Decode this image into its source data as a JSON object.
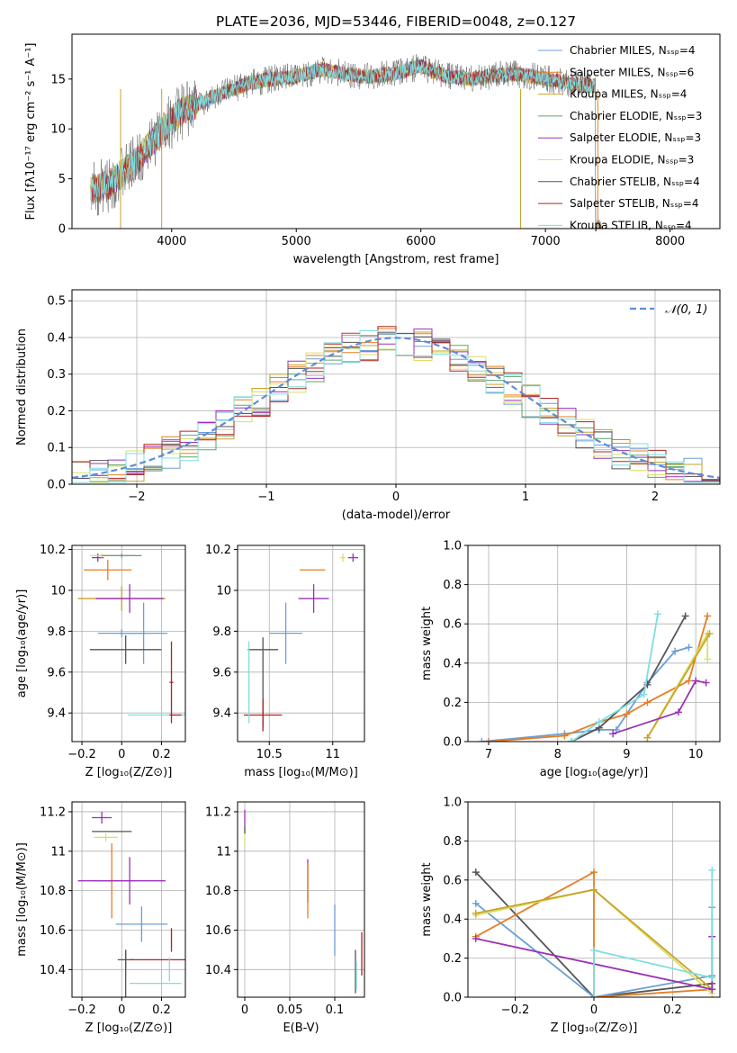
{
  "colors": [
    "#6b9fd6",
    "#e67e22",
    "#c9a227",
    "#5aa867",
    "#9b30b8",
    "#d8e066",
    "#555555",
    "#b22222",
    "#7fdde0"
  ],
  "chart_data": [
    {
      "id": "spectrum",
      "type": "line",
      "title": "PLATE=2036, MJD=53446, FIBERID=0048, z=0.127",
      "xlabel": "wavelength [Angstrom, rest frame]",
      "ylabel": "Flux [fλ10⁻¹⁷ erg cm⁻² s⁻¹ A⁻¹]",
      "xlim": [
        3200,
        8400
      ],
      "ylim": [
        0,
        19.5
      ],
      "xticks": [
        4000,
        5000,
        6000,
        7000,
        8000
      ],
      "yticks": [
        0,
        5,
        10,
        15
      ],
      "x": [
        3350,
        3500,
        3700,
        3900,
        4050,
        4200,
        4400,
        4600,
        4800,
        5000,
        5200,
        5400,
        5600,
        5800,
        6000,
        6200,
        6400,
        6600,
        6800,
        7000,
        7200,
        7400
      ],
      "y": [
        3.8,
        4.5,
        6.5,
        9.5,
        11.5,
        12.5,
        13.5,
        14.5,
        15.0,
        15.2,
        16.0,
        15.5,
        15.2,
        15.6,
        16.3,
        15.3,
        15.0,
        15.4,
        15.5,
        15.0,
        14.6,
        14.3
      ],
      "legend_location": "upper right",
      "legend": [
        "Chabrier MILES, Nₛₛₚ=4",
        "Salpeter MILES, Nₛₛₚ=6",
        "Kroupa MILES, Nₛₛₚ=4",
        "Chabrier ELODIE, Nₛₛₚ=3",
        "Salpeter ELODIE, Nₛₛₚ=3",
        "Kroupa ELODIE, Nₛₛₚ=3",
        "Chabrier STELIB, Nₛₛₚ=4",
        "Salpeter STELIB, Nₛₛₚ=4",
        "Kroupa STELIB, Nₛₛₚ=4"
      ]
    },
    {
      "id": "residuals",
      "type": "line",
      "xlabel": "(data-model)/error",
      "ylabel": "Normed distribution",
      "xlim": [
        -2.5,
        2.5
      ],
      "ylim": [
        0,
        0.53
      ],
      "xticks": [
        -2,
        -1,
        0,
        1,
        2
      ],
      "yticks": [
        0.0,
        0.1,
        0.2,
        0.3,
        0.4,
        0.5
      ],
      "grid": true,
      "legend_location": "upper right",
      "gaussian_label": "𝒩(0, 1)",
      "gaussian": {
        "mu": 0,
        "sigma": 1
      }
    },
    {
      "id": "age-vs-Z",
      "type": "scatter",
      "xlabel": "Z [log₁₀(Z/Z⊙)]",
      "ylabel": "age  [log₁₀(age/yr)]",
      "xlim": [
        -0.25,
        0.32
      ],
      "ylim": [
        9.26,
        10.22
      ],
      "xticks": [
        -0.2,
        0.0,
        0.2
      ],
      "yticks": [
        9.4,
        9.6,
        9.8,
        10.0,
        10.2
      ],
      "grid": true,
      "points": [
        {
          "x": -0.03,
          "y": 10.17,
          "xerr": 0.1,
          "yerr": 0.0,
          "c": 0
        },
        {
          "x": -0.07,
          "y": 10.1,
          "xerr": 0.12,
          "yerr": 0.05,
          "c": 1
        },
        {
          "x": -0.12,
          "y": 10.16,
          "xerr": 0.03,
          "yerr": 0.02,
          "c": 4
        },
        {
          "x": -0.1,
          "y": 10.17,
          "xerr": 0.06,
          "yerr": 0.01,
          "c": 5
        },
        {
          "x": 0.0,
          "y": 10.17,
          "xerr": 0.1,
          "yerr": 0.01,
          "c": 3
        },
        {
          "x": 0.0,
          "y": 9.96,
          "xerr": 0.22,
          "yerr": 0.06,
          "c": 2
        },
        {
          "x": 0.04,
          "y": 9.96,
          "xerr": 0.17,
          "yerr": 0.07,
          "c": 4
        },
        {
          "x": 0.0,
          "y": 9.79,
          "xerr": 0.12,
          "yerr": 0.02,
          "c": 0
        },
        {
          "x": 0.11,
          "y": 9.79,
          "xerr": 0.12,
          "yerr": 0.15,
          "c": 0
        },
        {
          "x": 0.02,
          "y": 9.71,
          "xerr": 0.18,
          "yerr": 0.07,
          "c": 6
        },
        {
          "x": 0.21,
          "y": 9.39,
          "xerr": 0.18,
          "yerr": 0.0,
          "c": 8
        },
        {
          "x": 0.25,
          "y": 9.55,
          "xerr": 0.01,
          "yerr": 0.2,
          "c": 7
        },
        {
          "x": 0.27,
          "y": 9.39,
          "xerr": 0.03,
          "yerr": 0.0,
          "c": 7
        }
      ]
    },
    {
      "id": "age-vs-mass",
      "type": "scatter",
      "xlabel": "mass [log₁₀(M/M⊙)]",
      "ylabel": "",
      "xlim": [
        10.25,
        11.25
      ],
      "ylim": [
        9.26,
        10.22
      ],
      "xticks": [
        10.5,
        11.0
      ],
      "yticks": [
        9.4,
        9.6,
        9.8,
        10.0,
        10.2
      ],
      "grid": true,
      "points": [
        {
          "x": 11.16,
          "y": 10.16,
          "xerr": 0.04,
          "yerr": 0.02,
          "c": 4
        },
        {
          "x": 11.08,
          "y": 10.16,
          "xerr": 0.02,
          "yerr": 0.02,
          "c": 5
        },
        {
          "x": 10.84,
          "y": 10.1,
          "xerr": 0.1,
          "yerr": 0.0,
          "c": 1
        },
        {
          "x": 10.85,
          "y": 9.96,
          "xerr": 0.12,
          "yerr": 0.07,
          "c": 4
        },
        {
          "x": 10.63,
          "y": 9.79,
          "xerr": 0.13,
          "yerr": 0.15,
          "c": 0
        },
        {
          "x": 10.45,
          "y": 9.71,
          "xerr": 0.12,
          "yerr": 0.0,
          "c": 6
        },
        {
          "x": 10.45,
          "y": 9.55,
          "xerr": 0.0,
          "yerr": 0.22,
          "c": 6
        },
        {
          "x": 10.45,
          "y": 9.39,
          "xerr": 0.15,
          "yerr": 0.08,
          "c": 7
        },
        {
          "x": 10.34,
          "y": 9.55,
          "xerr": 0.0,
          "yerr": 0.2,
          "c": 8
        }
      ]
    },
    {
      "id": "massweight-vs-age",
      "type": "line",
      "xlabel": "age  [log₁₀(age/yr)]",
      "ylabel": "mass weight",
      "xlim": [
        6.7,
        10.35
      ],
      "ylim": [
        0.0,
        1.0
      ],
      "xticks": [
        7,
        8,
        9,
        10
      ],
      "yticks": [
        0.0,
        0.2,
        0.4,
        0.6,
        0.8,
        1.0
      ],
      "grid": true,
      "series": [
        {
          "c": 0,
          "x": [
            6.9,
            8.1,
            8.6,
            8.85,
            9.3,
            9.7,
            9.9
          ],
          "y": [
            0.0,
            0.04,
            0.06,
            0.06,
            0.3,
            0.46,
            0.48
          ]
        },
        {
          "c": 1,
          "x": [
            7.0,
            8.1,
            8.6,
            9.0,
            9.3,
            9.9,
            10.17
          ],
          "y": [
            0.0,
            0.03,
            0.1,
            0.14,
            0.2,
            0.31,
            0.64
          ]
        },
        {
          "c": 6,
          "x": [
            8.2,
            8.6,
            9.3,
            9.85
          ],
          "y": [
            0.0,
            0.07,
            0.29,
            0.64
          ]
        },
        {
          "c": 8,
          "x": [
            8.2,
            8.6,
            9.25,
            9.45
          ],
          "y": [
            0.0,
            0.1,
            0.24,
            0.65
          ]
        },
        {
          "c": 5,
          "x": [
            9.3,
            10.17,
            10.17
          ],
          "y": [
            0.02,
            0.55,
            0.42
          ]
        },
        {
          "c": 2,
          "x": [
            9.3,
            10.2
          ],
          "y": [
            0.02,
            0.55
          ]
        },
        {
          "c": 4,
          "x": [
            8.8,
            9.75,
            10.0,
            10.15
          ],
          "y": [
            0.04,
            0.15,
            0.31,
            0.3
          ]
        }
      ]
    },
    {
      "id": "mass-vs-Z",
      "type": "scatter",
      "xlabel": "Z [log₁₀(Z/Z⊙)]",
      "ylabel": "mass [log₁₀(M/M⊙)]",
      "xlim": [
        -0.25,
        0.32
      ],
      "ylim": [
        10.26,
        11.25
      ],
      "xticks": [
        -0.2,
        0.0,
        0.2
      ],
      "yticks": [
        10.4,
        10.6,
        10.8,
        11.0,
        11.2
      ],
      "grid": true,
      "points": [
        {
          "x": -0.1,
          "y": 11.17,
          "xerr": 0.05,
          "yerr": 0.03,
          "c": 4
        },
        {
          "x": -0.05,
          "y": 11.1,
          "xerr": 0.1,
          "yerr": 0.0,
          "c": 6
        },
        {
          "x": -0.08,
          "y": 11.07,
          "xerr": 0.06,
          "yerr": 0.02,
          "c": 5
        },
        {
          "x": -0.05,
          "y": 10.85,
          "xerr": 0.1,
          "yerr": 0.19,
          "c": 1
        },
        {
          "x": 0.0,
          "y": 10.85,
          "xerr": 0.22,
          "yerr": 0.0,
          "c": 4
        },
        {
          "x": 0.04,
          "y": 10.85,
          "xerr": 0.0,
          "yerr": 0.12,
          "c": 4
        },
        {
          "x": 0.1,
          "y": 10.63,
          "xerr": 0.13,
          "yerr": 0.09,
          "c": 0
        },
        {
          "x": 0.02,
          "y": 10.45,
          "xerr": 0.04,
          "yerr": 0.05,
          "c": 6
        },
        {
          "x": 0.02,
          "y": 10.38,
          "xerr": 0.0,
          "yerr": 0.12,
          "c": 6
        },
        {
          "x": 0.18,
          "y": 10.45,
          "xerr": 0.14,
          "yerr": 0.0,
          "c": 7
        },
        {
          "x": 0.25,
          "y": 10.55,
          "xerr": 0.0,
          "yerr": 0.06,
          "c": 7
        },
        {
          "x": 0.17,
          "y": 10.33,
          "xerr": 0.13,
          "yerr": 0.0,
          "c": 8
        },
        {
          "x": 0.24,
          "y": 10.4,
          "xerr": 0.0,
          "yerr": 0.06,
          "c": 8
        }
      ]
    },
    {
      "id": "mass-vs-ebv",
      "type": "scatter",
      "xlabel": "E(B-V)",
      "ylabel": "",
      "xlim": [
        -0.008,
        0.133
      ],
      "ylim": [
        10.26,
        11.25
      ],
      "xticks": [
        0.0,
        0.05,
        0.1
      ],
      "yticks": [
        10.4,
        10.6,
        10.8,
        11.0,
        11.2
      ],
      "grid": true,
      "points": [
        {
          "x": 0.0,
          "y": 11.17,
          "xerr": 0.0,
          "yerr": 0.04,
          "c": 4
        },
        {
          "x": 0.0,
          "y": 11.08,
          "xerr": 0.0,
          "yerr": 0.04,
          "c": 5
        },
        {
          "x": 0.0,
          "y": 11.11,
          "xerr": 0.0,
          "yerr": 0.02,
          "c": 6
        },
        {
          "x": 0.07,
          "y": 10.85,
          "xerr": 0.0,
          "yerr": 0.11,
          "c": 4
        },
        {
          "x": 0.07,
          "y": 10.8,
          "xerr": 0.0,
          "yerr": 0.14,
          "c": 1
        },
        {
          "x": 0.1,
          "y": 10.6,
          "xerr": 0.0,
          "yerr": 0.13,
          "c": 0
        },
        {
          "x": 0.123,
          "y": 10.39,
          "xerr": 0.0,
          "yerr": 0.11,
          "c": 6
        },
        {
          "x": 0.124,
          "y": 10.37,
          "xerr": 0.0,
          "yerr": 0.07,
          "c": 8
        },
        {
          "x": 0.13,
          "y": 10.48,
          "xerr": 0.0,
          "yerr": 0.11,
          "c": 7
        }
      ]
    },
    {
      "id": "massweight-vs-Z",
      "type": "line",
      "xlabel": "Z [log₁₀(Z/Z⊙)]",
      "ylabel": "mass weight",
      "xlim": [
        -0.32,
        0.32
      ],
      "ylim": [
        0.0,
        1.0
      ],
      "xticks": [
        -0.2,
        0.0,
        0.2
      ],
      "yticks": [
        0.0,
        0.2,
        0.4,
        0.6,
        0.8,
        1.0
      ],
      "grid": true,
      "series": [
        {
          "c": 6,
          "x": [
            -0.3,
            0.0,
            0.3,
            0.3
          ],
          "y": [
            0.64,
            0.0,
            0.07,
            0.04
          ]
        },
        {
          "c": 0,
          "x": [
            -0.3,
            0.0,
            0.3,
            0.3
          ],
          "y": [
            0.48,
            0.0,
            0.11,
            0.46
          ]
        },
        {
          "c": 1,
          "x": [
            -0.3,
            0.0,
            0.0,
            0.3
          ],
          "y": [
            0.31,
            0.64,
            0.0,
            0.04
          ]
        },
        {
          "c": 5,
          "x": [
            -0.3,
            0.0,
            0.3,
            0.3
          ],
          "y": [
            0.42,
            0.55,
            0.02,
            0.04
          ]
        },
        {
          "c": 2,
          "x": [
            -0.3,
            0.0,
            0.3
          ],
          "y": [
            0.43,
            0.55,
            0.04
          ]
        },
        {
          "c": 4,
          "x": [
            -0.3,
            0.3,
            0.3
          ],
          "y": [
            0.3,
            0.04,
            0.31
          ]
        },
        {
          "c": 8,
          "x": [
            0.0,
            0.0,
            0.3,
            0.3
          ],
          "y": [
            0.0,
            0.24,
            0.1,
            0.65
          ]
        }
      ]
    }
  ]
}
